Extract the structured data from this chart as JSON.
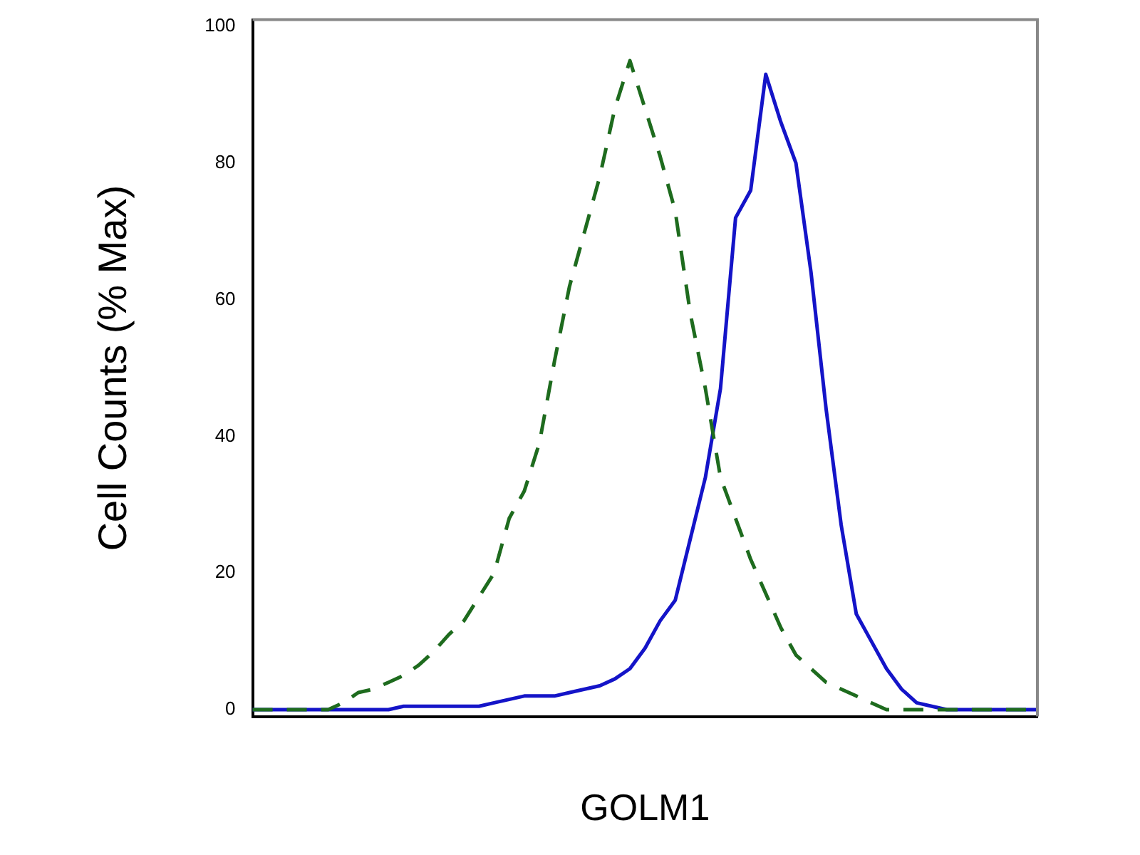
{
  "chart_data": {
    "type": "line",
    "xlabel": "GOLM1",
    "ylabel": "Cell Counts (% Max)",
    "categories": [
      null,
      null,
      null,
      null,
      null,
      null,
      null,
      null,
      null,
      null,
      null,
      null,
      null,
      null,
      null,
      null,
      null,
      null,
      null,
      null,
      null,
      null,
      null,
      null,
      null,
      null,
      null,
      null,
      null,
      null,
      null,
      null,
      null,
      null,
      null,
      null,
      null,
      null,
      null,
      null,
      null,
      null,
      null,
      null,
      null,
      null,
      null,
      null,
      null,
      null,
      null,
      null,
      null
    ],
    "series": [
      {
        "color": "#1e6b1e",
        "line_style": "dashed",
        "values": [
          0,
          0,
          0,
          0,
          0,
          0,
          1,
          2.5,
          3,
          4,
          5,
          6.5,
          8.5,
          11,
          13,
          16.5,
          20,
          28,
          32,
          39,
          51,
          62,
          70,
          78,
          88,
          95,
          88,
          81,
          73,
          58,
          47,
          34,
          28,
          22,
          17,
          12,
          8,
          6,
          4,
          3,
          2,
          1,
          0,
          0,
          0,
          0,
          0,
          0,
          0,
          0,
          0,
          0,
          0
        ]
      },
      {
        "color": "#1414c8",
        "line_style": "solid",
        "values": [
          0,
          0,
          0,
          0,
          0,
          0,
          0,
          0,
          0,
          0,
          0.5,
          0.5,
          0.5,
          0.5,
          0.5,
          0.5,
          1,
          1.5,
          2,
          2,
          2,
          2.5,
          3,
          3.5,
          4.5,
          6,
          9,
          13,
          16,
          25,
          34,
          47,
          72,
          76,
          93,
          86,
          80,
          64,
          44,
          27,
          14,
          10,
          6,
          3,
          1,
          0.5,
          0,
          0,
          0,
          0,
          0,
          0,
          0
        ]
      }
    ],
    "ylim": [
      -1,
      101
    ],
    "yticks": [
      0,
      20,
      40,
      60,
      80,
      100
    ],
    "tick_labels": "y",
    "grid": false,
    "legend": false,
    "marker": "none"
  }
}
